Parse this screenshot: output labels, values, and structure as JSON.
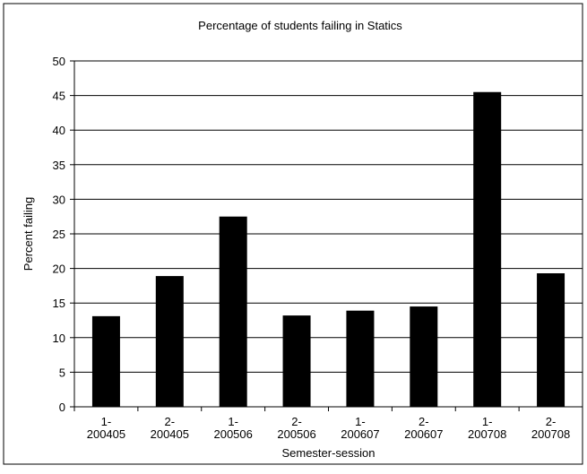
{
  "chart_data": {
    "type": "bar",
    "title": "Percentage of students failing in Statics",
    "xlabel": "Semester-session",
    "ylabel": "Percent failing",
    "categories": [
      [
        "1-",
        "200405"
      ],
      [
        "2-",
        "200405"
      ],
      [
        "1-",
        "200506"
      ],
      [
        "2-",
        "200506"
      ],
      [
        "1-",
        "200607"
      ],
      [
        "2-",
        "200607"
      ],
      [
        "1-",
        "200708"
      ],
      [
        "2-",
        "200708"
      ]
    ],
    "values": [
      13.1,
      18.9,
      27.5,
      13.2,
      13.9,
      14.5,
      45.5,
      19.3
    ],
    "ylim": [
      0,
      50
    ],
    "yticks": [
      0,
      5,
      10,
      15,
      20,
      25,
      30,
      35,
      40,
      45,
      50
    ],
    "grid": true,
    "legend": "none",
    "colors": {
      "bar": "#000000",
      "grid": "#000000",
      "frame": "#000000",
      "background": "#ffffff"
    }
  }
}
